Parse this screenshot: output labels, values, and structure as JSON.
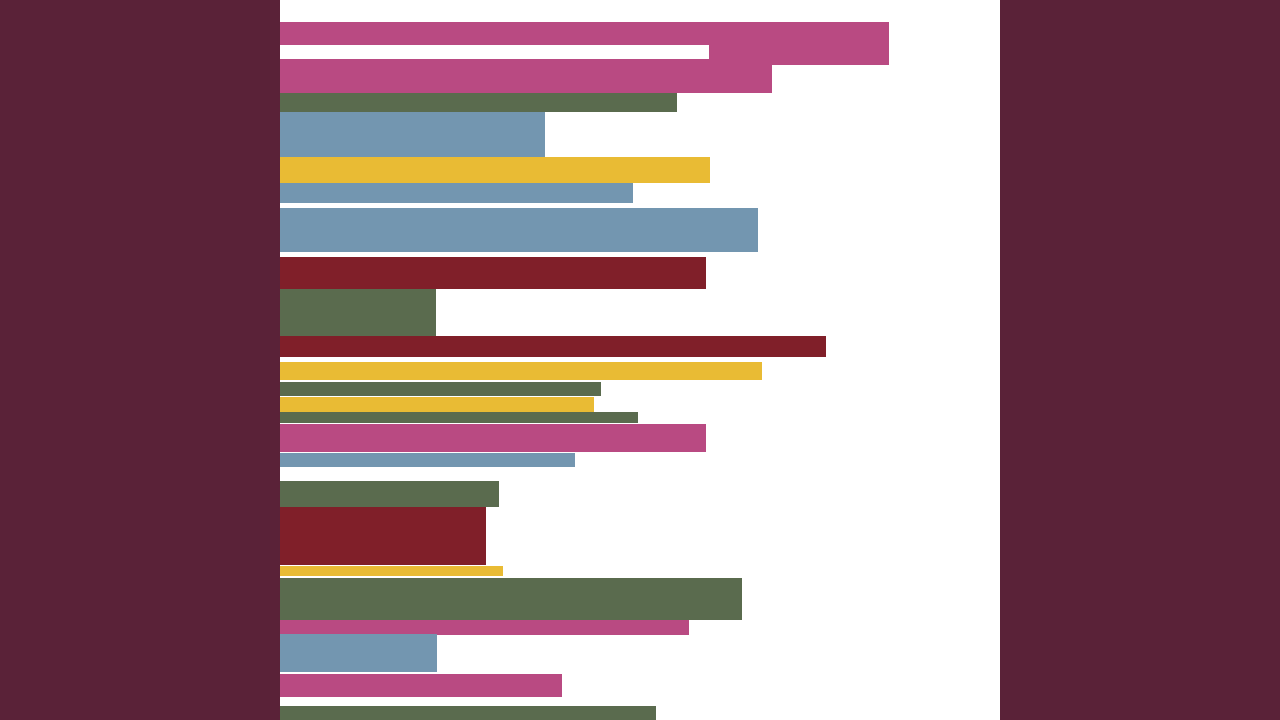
{
  "artwork": {
    "background_color": "#5a2238",
    "panel_color": "#ffffff",
    "palette": {
      "pink": "#b94a82",
      "green": "#5a6b4e",
      "blue": "#7396b0",
      "yellow": "#e9bb34",
      "red": "#801f29"
    },
    "bar_sequence": [
      "pink",
      "pink",
      "green",
      "blue",
      "yellow",
      "blue",
      "blue",
      "red",
      "green",
      "red",
      "yellow",
      "green",
      "yellow",
      "green",
      "pink",
      "blue",
      "green",
      "red",
      "yellow",
      "green",
      "pink",
      "blue",
      "pink",
      "green"
    ]
  }
}
